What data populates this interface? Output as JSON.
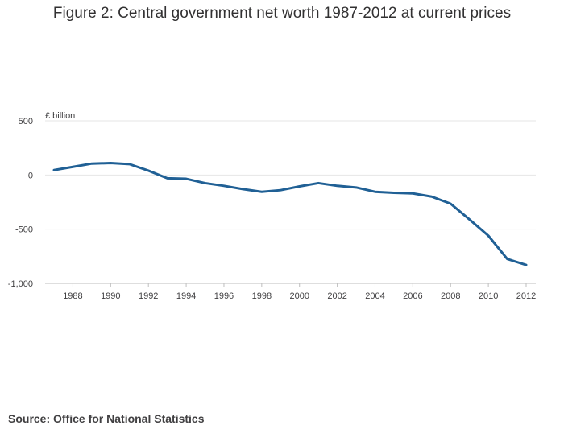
{
  "source": "Source: Office for National Statistics",
  "chart_data": {
    "type": "line",
    "title": "Figure 2: Central government net worth 1987-2012 at current prices",
    "ylabel": "£ billion",
    "xlabel": "",
    "x": [
      1987,
      1988,
      1989,
      1990,
      1991,
      1992,
      1993,
      1994,
      1995,
      1996,
      1997,
      1998,
      1999,
      2000,
      2001,
      2002,
      2003,
      2004,
      2005,
      2006,
      2007,
      2008,
      2009,
      2010,
      2011,
      2012
    ],
    "series": [
      {
        "name": "Central government net worth",
        "color": "#206095",
        "values": [
          45,
          75,
          105,
          110,
          100,
          40,
          -30,
          -35,
          -75,
          -100,
          -130,
          -155,
          -140,
          -105,
          -75,
          -100,
          -115,
          -155,
          -165,
          -170,
          -200,
          -265,
          -410,
          -560,
          -775,
          -830
        ]
      }
    ],
    "ylim": [
      -1000,
      500
    ],
    "yticks": [
      500,
      0,
      -500,
      -1000
    ],
    "ytick_labels": [
      "500",
      "0",
      "-500",
      "-1,000"
    ],
    "xlim": [
      1987,
      2012
    ],
    "xticks": [
      1988,
      1990,
      1992,
      1994,
      1996,
      1998,
      2000,
      2002,
      2004,
      2006,
      2008,
      2010,
      2012
    ],
    "xtick_labels": [
      "1988",
      "1990",
      "1992",
      "1994",
      "1996",
      "1998",
      "2000",
      "2002",
      "2004",
      "2006",
      "2008",
      "2010",
      "2012"
    ],
    "grid": true,
    "colors": {
      "line": "#206095",
      "grid": "#e6e6e6",
      "axis": "#bebebe"
    }
  }
}
